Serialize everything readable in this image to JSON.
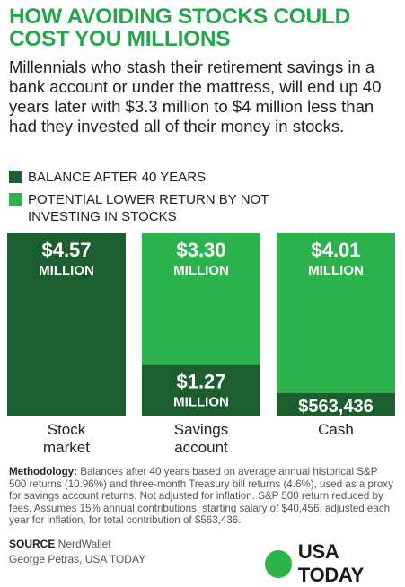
{
  "header": {
    "title": "HOW AVOIDING STOCKS COULD COST YOU MILLIONS",
    "subtitle": "Millennials who stash their retirement savings in a bank account or under the mattress, will end up 40 years later with $3.3 million to $4 million less than had they invested all of their money in stocks."
  },
  "colors": {
    "balance": "#1c5e30",
    "lower_return": "#2db34d",
    "title": "#25a64a"
  },
  "chart_data": {
    "type": "bar",
    "stacked": true,
    "categories": [
      "Stock market",
      "Savings account",
      "Cash"
    ],
    "series": [
      {
        "name": "BALANCE AFTER 40 YEARS",
        "values": [
          4570000,
          1270000,
          563436
        ],
        "labels": [
          "$4.57 MILLION",
          "$1.27 MILLION",
          "$563,436"
        ]
      },
      {
        "name": "POTENTIAL LOWER RETURN BY NOT INVESTING IN STOCKS",
        "values": [
          0,
          3300000,
          4010000
        ],
        "labels": [
          "",
          "$3.30 MILLION",
          "$4.01 MILLION"
        ]
      }
    ],
    "category_labels": [
      [
        "Stock",
        "market"
      ],
      [
        "Savings",
        "account"
      ],
      [
        "Cash"
      ]
    ],
    "ylim": [
      0,
      4570000
    ],
    "grid": false,
    "legend": "top-left"
  },
  "footer": {
    "methodology_label": "Methodology:",
    "methodology_text": " Balances after 40 years based on average annual historical S&P 500 returns (10.96%) and three-month Treasury bill returns (4.6%), used as a proxy for savings account returns. Not adjusted for inflation. S&P 500 return reduced by fees. Assumes 15% annual contributions, starting salary of $40,456, adjusted each year for inflation, for total contribution of $563,436.",
    "source_label": "SOURCE",
    "source_text": " NerdWallet",
    "credit": "George Petras, USA TODAY",
    "brand": "USA TODAY"
  }
}
